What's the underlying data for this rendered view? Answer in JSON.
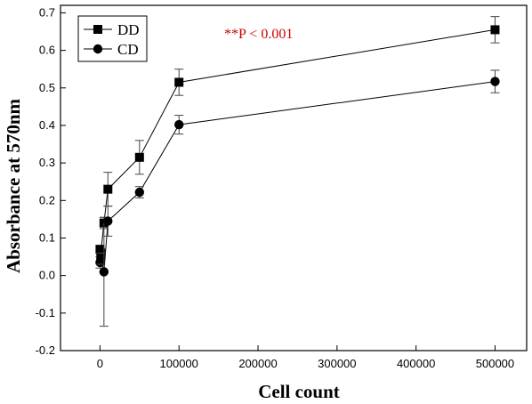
{
  "chart_data": {
    "type": "scatter",
    "xlabel": "Cell count",
    "ylabel": "Absorbance at 570nm",
    "xlim": [
      -50000,
      540000
    ],
    "ylim": [
      -0.2,
      0.72
    ],
    "xticks": [
      0,
      100000,
      200000,
      300000,
      400000,
      500000
    ],
    "xtick_labels": [
      "0",
      "100000",
      "200000",
      "300000",
      "400000",
      "500000"
    ],
    "yticks": [
      -0.2,
      -0.1,
      0.0,
      0.1,
      0.2,
      0.3,
      0.4,
      0.5,
      0.6,
      0.7
    ],
    "ytick_labels": [
      "-0.2",
      "-0.1",
      "0.0",
      "0.1",
      "0.2",
      "0.3",
      "0.4",
      "0.5",
      "0.6",
      "0.7"
    ],
    "grid": false,
    "legend_position": "top-left",
    "annotation": {
      "text": "**P < 0.001",
      "color": "#cc0000"
    },
    "series": [
      {
        "name": "DD",
        "marker": "square",
        "color": "#000000",
        "x": [
          0,
          1000,
          5000,
          10000,
          50000,
          100000,
          500000
        ],
        "y": [
          0.07,
          0.06,
          0.14,
          0.23,
          0.315,
          0.515,
          0.655
        ],
        "err": [
          0.01,
          0.01,
          0.015,
          0.045,
          0.045,
          0.035,
          0.035
        ]
      },
      {
        "name": "CD",
        "marker": "circle",
        "color": "#000000",
        "x": [
          0,
          1000,
          5000,
          10000,
          50000,
          100000,
          500000
        ],
        "y": [
          0.035,
          0.045,
          0.01,
          0.145,
          0.222,
          0.402,
          0.517
        ],
        "err": [
          0.015,
          0.015,
          0.145,
          0.04,
          0.015,
          0.025,
          0.03
        ]
      }
    ]
  }
}
